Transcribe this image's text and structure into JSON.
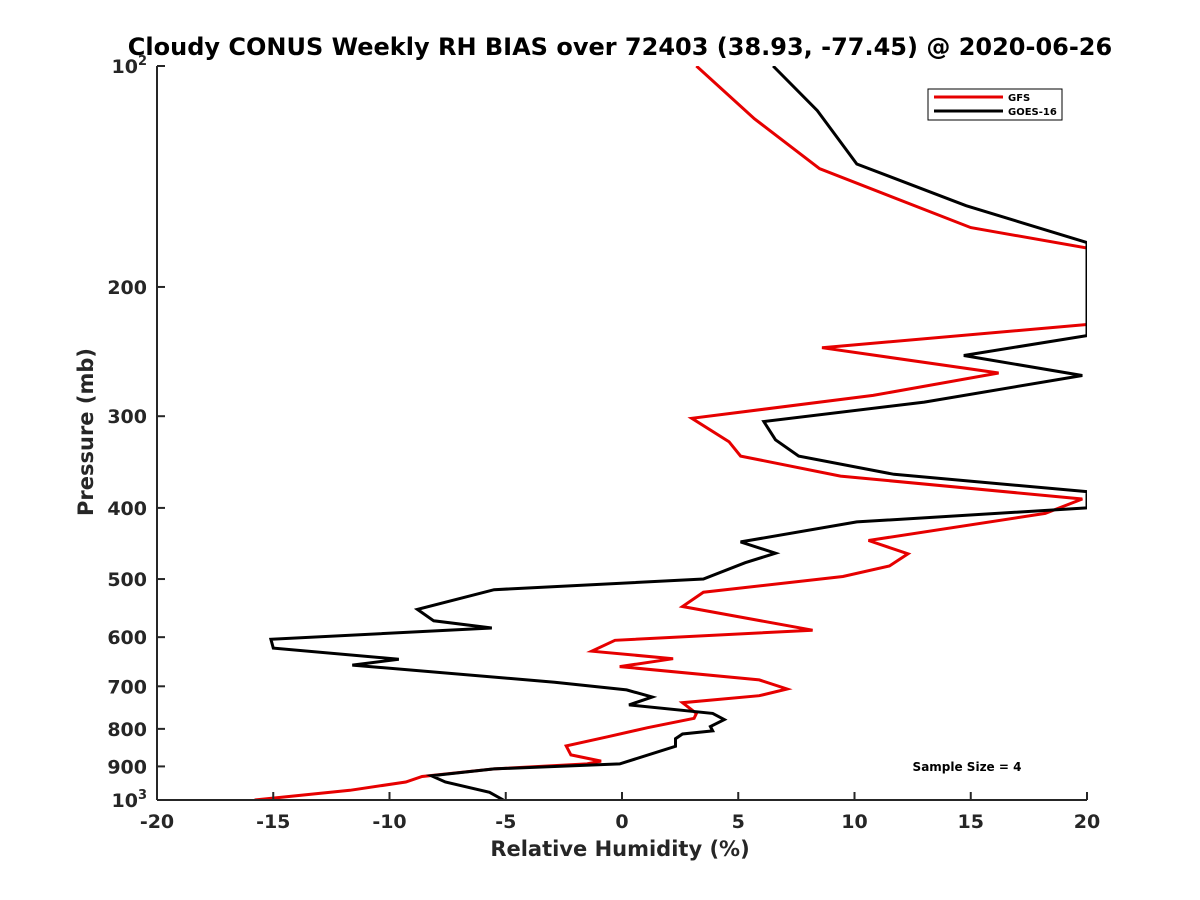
{
  "chart_data": {
    "type": "line",
    "title": "Cloudy CONUS Weekly RH BIAS over 72403 (38.93, -77.45) @ 2020-06-26",
    "xlabel": "Relative Humidity (%)",
    "ylabel": "Pressure (mb)",
    "xlim": [
      -20,
      20
    ],
    "ylim": [
      100,
      1000
    ],
    "y_scale": "log",
    "y_reversed": true,
    "grid": false,
    "x_ticks": [
      "-20",
      "-15",
      "-10",
      "-5",
      "0",
      "5",
      "10",
      "15",
      "20"
    ],
    "y_ticks": [
      {
        "value": 100,
        "base": "10",
        "exp": "2"
      },
      {
        "value": 200,
        "label": "200"
      },
      {
        "value": 300,
        "label": "300"
      },
      {
        "value": 400,
        "label": "400"
      },
      {
        "value": 500,
        "label": "500"
      },
      {
        "value": 600,
        "label": "600"
      },
      {
        "value": 700,
        "label": "700"
      },
      {
        "value": 800,
        "label": "800"
      },
      {
        "value": 900,
        "label": "900"
      },
      {
        "value": 1000,
        "base": "10",
        "exp": "3"
      }
    ],
    "legend_position": "top-right",
    "annotation": "Sample Size = 4",
    "series": [
      {
        "name": "GFS",
        "color": "#e60000",
        "points": [
          [
            3.2,
            100
          ],
          [
            5.7,
            118
          ],
          [
            8.5,
            138
          ],
          [
            15,
            166
          ],
          [
            20,
            177
          ],
          [
            20,
            225
          ],
          [
            8.6,
            242
          ],
          [
            16.2,
            262
          ],
          [
            10.8,
            281
          ],
          [
            3,
            302
          ],
          [
            4.6,
            325
          ],
          [
            5.1,
            340
          ],
          [
            9.4,
            362
          ],
          [
            19.8,
            389
          ],
          [
            18.2,
            407
          ],
          [
            10.6,
            443
          ],
          [
            12.3,
            462
          ],
          [
            11.5,
            480
          ],
          [
            9.5,
            496
          ],
          [
            3.5,
            521
          ],
          [
            2.6,
            545
          ],
          [
            8.2,
            587
          ],
          [
            -0.3,
            606
          ],
          [
            -1.3,
            627
          ],
          [
            2.2,
            642
          ],
          [
            -0.1,
            658
          ],
          [
            5.9,
            686
          ],
          [
            7.1,
            706
          ],
          [
            5.9,
            721
          ],
          [
            2.6,
            737
          ],
          [
            3.2,
            762
          ],
          [
            3.1,
            774
          ],
          [
            1.1,
            797
          ],
          [
            -0.6,
            820
          ],
          [
            -2.4,
            844
          ],
          [
            -2.2,
            868
          ],
          [
            -0.9,
            885
          ],
          [
            -1.5,
            893
          ],
          [
            -5.5,
            907
          ],
          [
            -8.6,
            929
          ],
          [
            -9.3,
            945
          ],
          [
            -11.7,
            970
          ],
          [
            -15.8,
            1000
          ]
        ]
      },
      {
        "name": "GOES-16",
        "color": "#000000",
        "points": [
          [
            6.5,
            100
          ],
          [
            8.4,
            115
          ],
          [
            10.1,
            136
          ],
          [
            14.8,
            155
          ],
          [
            20,
            174
          ],
          [
            20,
            233
          ],
          [
            14.7,
            248
          ],
          [
            19.8,
            264
          ],
          [
            13,
            287
          ],
          [
            6.1,
            305
          ],
          [
            6.6,
            323
          ],
          [
            7.6,
            340
          ],
          [
            11.7,
            360
          ],
          [
            20,
            380
          ],
          [
            20,
            400
          ],
          [
            10.1,
            418
          ],
          [
            5.1,
            445
          ],
          [
            6.6,
            461
          ],
          [
            5.3,
            475
          ],
          [
            3.5,
            500
          ],
          [
            -5.5,
            517
          ],
          [
            -8.8,
            550
          ],
          [
            -8.1,
            570
          ],
          [
            -5.6,
            583
          ],
          [
            -15.1,
            604
          ],
          [
            -15,
            621
          ],
          [
            -9.6,
            643
          ],
          [
            -11.6,
            655
          ],
          [
            -2.9,
            691
          ],
          [
            0.2,
            708
          ],
          [
            1.3,
            724
          ],
          [
            0.3,
            742
          ],
          [
            3.9,
            762
          ],
          [
            4.4,
            777
          ],
          [
            3.8,
            794
          ],
          [
            3.9,
            805
          ],
          [
            2.6,
            813
          ],
          [
            2.3,
            825
          ],
          [
            2.3,
            845
          ],
          [
            -0.1,
            893
          ],
          [
            -5.5,
            907
          ],
          [
            -8.2,
            927
          ],
          [
            -7.6,
            945
          ],
          [
            -5.7,
            976
          ],
          [
            -5.1,
            1000
          ]
        ]
      }
    ]
  }
}
